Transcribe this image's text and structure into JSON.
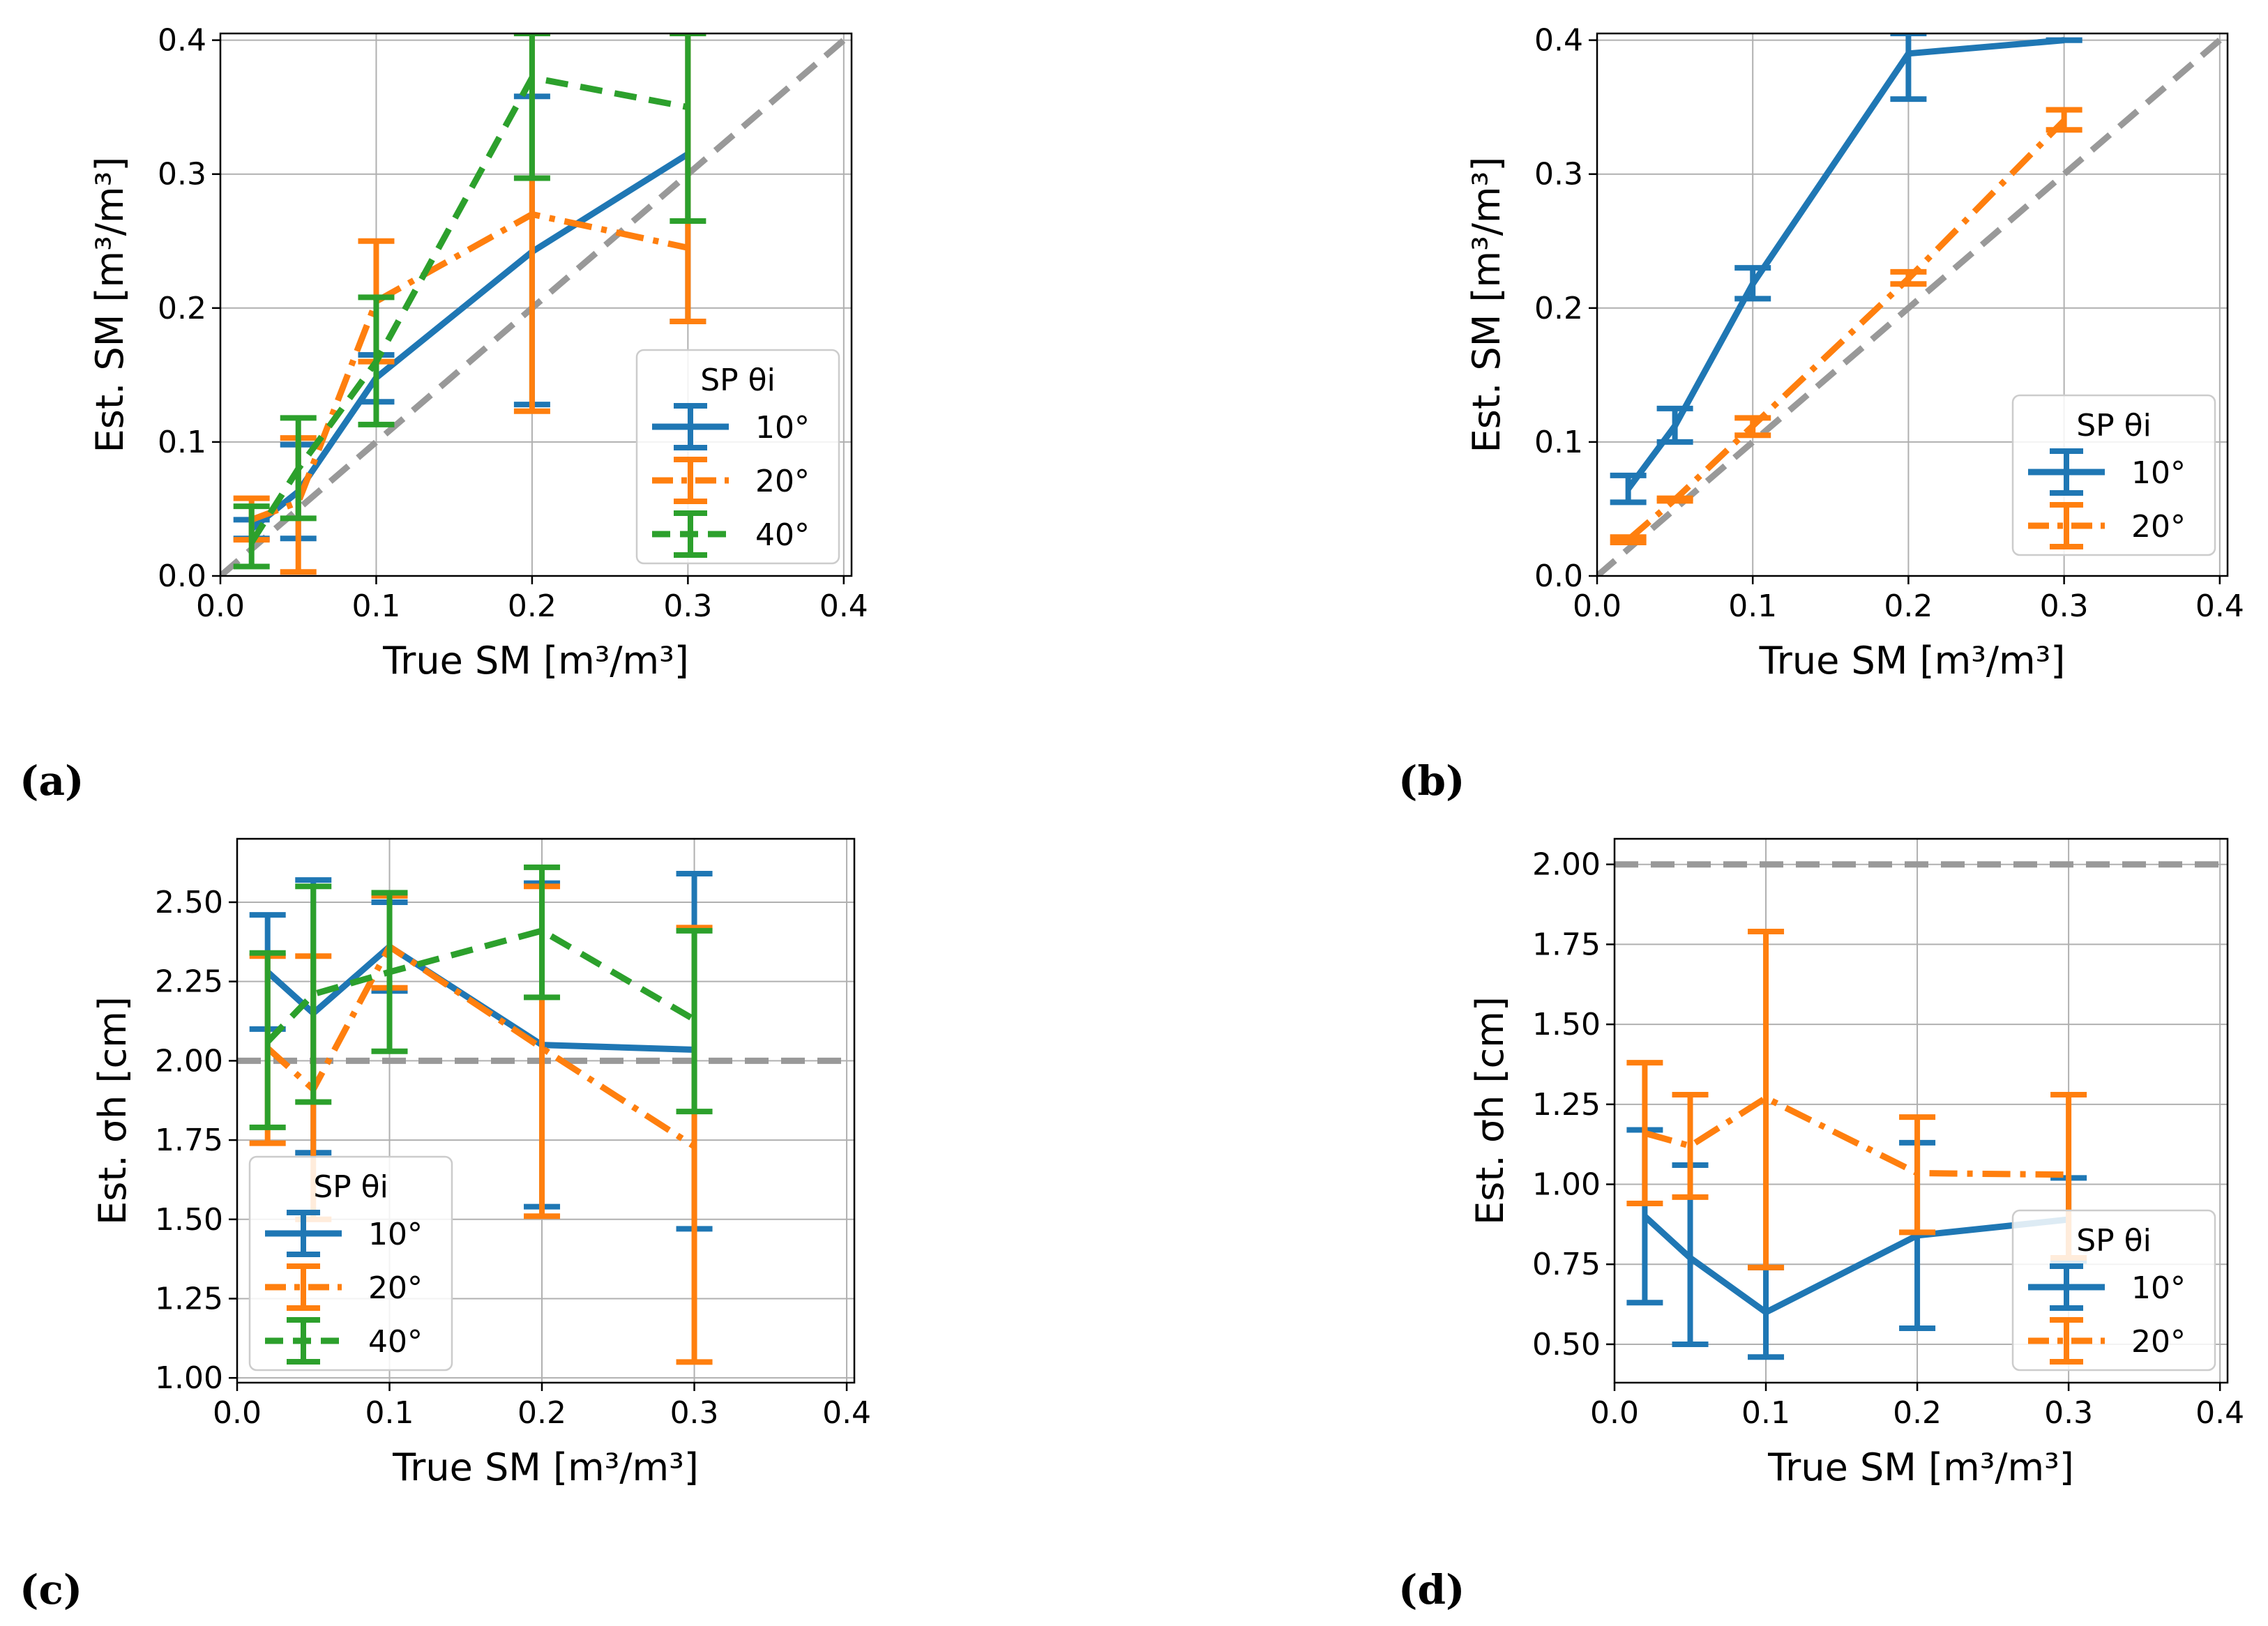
{
  "colors": {
    "s10": "#1f77b4",
    "s20": "#ff7f0e",
    "s40": "#2ca02c",
    "ref": "#999999",
    "grid": "#b0b0b0"
  },
  "chart_data": [
    {
      "id": "a",
      "type": "line",
      "panel_label": "(a)",
      "xlabel": "True SM [m³/m³]",
      "ylabel": "Est. SM [m³/m³]",
      "xlim": [
        0,
        0.405
      ],
      "ylim": [
        0,
        0.405
      ],
      "xticks": [
        0.0,
        0.1,
        0.2,
        0.3,
        0.4
      ],
      "xtick_labels": [
        "0.0",
        "0.1",
        "0.2",
        "0.3",
        "0.4"
      ],
      "yticks": [
        0.0,
        0.1,
        0.2,
        0.3,
        0.4
      ],
      "ytick_labels": [
        "0.0",
        "0.1",
        "0.2",
        "0.3",
        "0.4"
      ],
      "grid": true,
      "reference": {
        "type": "diagonal"
      },
      "legend": {
        "title": "SP θi",
        "placement": "lower-right",
        "entries": [
          "10°",
          "20°",
          "40°"
        ]
      },
      "series": [
        {
          "name": "10°",
          "style": "solid",
          "x": [
            0.02,
            0.05,
            0.1,
            0.2,
            0.3
          ],
          "y": [
            0.035,
            0.063,
            0.148,
            0.242,
            0.315
          ],
          "err_low": [
            0.028,
            0.028,
            0.13,
            0.128,
            0.19
          ],
          "err_high": [
            0.042,
            0.098,
            0.165,
            0.358,
            0.405
          ]
        },
        {
          "name": "20°",
          "style": "dashdot",
          "x": [
            0.02,
            0.05,
            0.1,
            0.2,
            0.3
          ],
          "y": [
            0.042,
            0.055,
            0.205,
            0.27,
            0.245
          ],
          "err_low": [
            0.027,
            0.003,
            0.16,
            0.123,
            0.19
          ],
          "err_high": [
            0.058,
            0.103,
            0.25,
            0.405,
            0.405
          ]
        },
        {
          "name": "40°",
          "style": "dashed",
          "x": [
            0.02,
            0.05,
            0.1,
            0.2,
            0.3
          ],
          "y": [
            0.025,
            0.08,
            0.16,
            0.372,
            0.35
          ],
          "err_low": [
            0.007,
            0.043,
            0.113,
            0.297,
            0.265
          ],
          "err_high": [
            0.052,
            0.118,
            0.208,
            0.405,
            0.405
          ]
        }
      ]
    },
    {
      "id": "b",
      "type": "line",
      "panel_label": "(b)",
      "xlabel": "True SM [m³/m³]",
      "ylabel": "Est. SM [m³/m³]",
      "xlim": [
        0,
        0.405
      ],
      "ylim": [
        0,
        0.405
      ],
      "xticks": [
        0.0,
        0.1,
        0.2,
        0.3,
        0.4
      ],
      "xtick_labels": [
        "0.0",
        "0.1",
        "0.2",
        "0.3",
        "0.4"
      ],
      "yticks": [
        0.0,
        0.1,
        0.2,
        0.3,
        0.4
      ],
      "ytick_labels": [
        "0.0",
        "0.1",
        "0.2",
        "0.3",
        "0.4"
      ],
      "grid": true,
      "reference": {
        "type": "diagonal"
      },
      "legend": {
        "title": "SP θi",
        "placement": "lower-right",
        "entries": [
          "10°",
          "20°"
        ]
      },
      "series": [
        {
          "name": "10°",
          "style": "solid",
          "x": [
            0.02,
            0.05,
            0.1,
            0.2,
            0.3
          ],
          "y": [
            0.065,
            0.112,
            0.218,
            0.39,
            0.4
          ],
          "err_low": [
            0.055,
            0.1,
            0.207,
            0.356,
            0.4
          ],
          "err_high": [
            0.075,
            0.125,
            0.23,
            0.405,
            0.4
          ]
        },
        {
          "name": "20°",
          "style": "dashdot",
          "x": [
            0.02,
            0.05,
            0.1,
            0.2,
            0.3
          ],
          "y": [
            0.027,
            0.057,
            0.112,
            0.222,
            0.34
          ],
          "err_low": [
            0.025,
            0.056,
            0.105,
            0.218,
            0.333
          ],
          "err_high": [
            0.029,
            0.058,
            0.118,
            0.227,
            0.348
          ]
        }
      ]
    },
    {
      "id": "c",
      "type": "line",
      "panel_label": "(c)",
      "xlabel": "True SM [m³/m³]",
      "ylabel": "Est. σh [cm]",
      "xlim": [
        0,
        0.405
      ],
      "ylim": [
        0.985,
        2.7
      ],
      "xticks": [
        0.0,
        0.1,
        0.2,
        0.3,
        0.4
      ],
      "xtick_labels": [
        "0.0",
        "0.1",
        "0.2",
        "0.3",
        "0.4"
      ],
      "yticks": [
        1.0,
        1.25,
        1.5,
        1.75,
        2.0,
        2.25,
        2.5
      ],
      "ytick_labels": [
        "1.00",
        "1.25",
        "1.50",
        "1.75",
        "2.00",
        "2.25",
        "2.50"
      ],
      "grid": true,
      "reference": {
        "type": "horizontal",
        "y": 2.0
      },
      "legend": {
        "title": "SP θi",
        "placement": "lower-left",
        "entries": [
          "10°",
          "20°",
          "40°"
        ]
      },
      "series": [
        {
          "name": "10°",
          "style": "solid",
          "x": [
            0.02,
            0.05,
            0.1,
            0.2,
            0.3
          ],
          "y": [
            2.28,
            2.15,
            2.36,
            2.05,
            2.035
          ],
          "err_low": [
            2.1,
            1.71,
            2.22,
            1.54,
            1.47
          ],
          "err_high": [
            2.46,
            2.57,
            2.5,
            2.56,
            2.59
          ]
        },
        {
          "name": "20°",
          "style": "dashdot",
          "x": [
            0.02,
            0.05,
            0.1,
            0.2,
            0.3
          ],
          "y": [
            2.04,
            1.91,
            2.36,
            2.04,
            1.73
          ],
          "err_low": [
            1.74,
            1.5,
            2.23,
            1.51,
            1.05
          ],
          "err_high": [
            2.33,
            2.33,
            2.52,
            2.55,
            2.42
          ]
        },
        {
          "name": "40°",
          "style": "dashed",
          "x": [
            0.02,
            0.05,
            0.1,
            0.2,
            0.3
          ],
          "y": [
            2.06,
            2.21,
            2.28,
            2.41,
            2.13
          ],
          "err_low": [
            1.79,
            1.87,
            2.03,
            2.2,
            1.84
          ],
          "err_high": [
            2.34,
            2.55,
            2.53,
            2.61,
            2.41
          ]
        }
      ]
    },
    {
      "id": "d",
      "type": "line",
      "panel_label": "(d)",
      "xlabel": "True SM [m³/m³]",
      "ylabel": "Est. σh [cm]",
      "xlim": [
        0,
        0.405
      ],
      "ylim": [
        0.38,
        2.08
      ],
      "xticks": [
        0.0,
        0.1,
        0.2,
        0.3,
        0.4
      ],
      "xtick_labels": [
        "0.0",
        "0.1",
        "0.2",
        "0.3",
        "0.4"
      ],
      "yticks": [
        0.5,
        0.75,
        1.0,
        1.25,
        1.5,
        1.75,
        2.0
      ],
      "ytick_labels": [
        "0.50",
        "0.75",
        "1.00",
        "1.25",
        "1.50",
        "1.75",
        "2.00"
      ],
      "grid": true,
      "reference": {
        "type": "horizontal",
        "y": 2.0
      },
      "legend": {
        "title": "SP θi",
        "placement": "lower-right",
        "entries": [
          "10°",
          "20°"
        ]
      },
      "series": [
        {
          "name": "10°",
          "style": "solid",
          "x": [
            0.02,
            0.05,
            0.1,
            0.2,
            0.3
          ],
          "y": [
            0.9,
            0.77,
            0.6,
            0.84,
            0.89
          ],
          "err_low": [
            0.63,
            0.5,
            0.46,
            0.55,
            0.76
          ],
          "err_high": [
            1.17,
            1.06,
            0.74,
            1.13,
            1.02
          ]
        },
        {
          "name": "20°",
          "style": "dashdot",
          "x": [
            0.02,
            0.05,
            0.1,
            0.2,
            0.3
          ],
          "y": [
            1.16,
            1.12,
            1.27,
            1.035,
            1.03
          ],
          "err_low": [
            0.94,
            0.96,
            0.74,
            0.85,
            0.77
          ],
          "err_high": [
            1.38,
            1.28,
            1.79,
            1.21,
            1.28
          ]
        }
      ]
    }
  ]
}
